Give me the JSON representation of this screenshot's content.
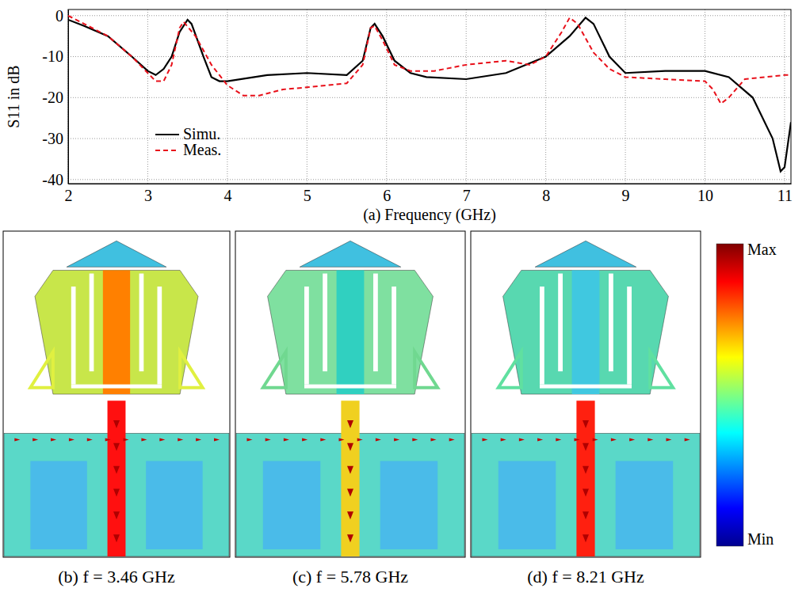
{
  "chart_data": {
    "type": "line",
    "xlabel": "(a) Frequency (GHz)",
    "ylabel": "S11 in dB",
    "xlim": [
      2,
      11.08
    ],
    "xticks": [
      2,
      3,
      4,
      5,
      6,
      7,
      8,
      9,
      10,
      11
    ],
    "ylim": [
      -41,
      1.5
    ],
    "yticks": [
      -40,
      -30,
      -20,
      -10,
      0
    ],
    "grid": true,
    "legend": "lower left",
    "series": [
      {
        "name": "Simu.",
        "color": "#000000",
        "line_style": "solid",
        "x": [
          2,
          2.2,
          2.5,
          2.8,
          3.0,
          3.1,
          3.2,
          3.3,
          3.4,
          3.5,
          3.55,
          3.7,
          3.8,
          3.9,
          4.0,
          4.5,
          5.0,
          5.5,
          5.7,
          5.8,
          5.85,
          5.95,
          6.1,
          6.3,
          6.5,
          7.0,
          7.5,
          8.0,
          8.3,
          8.5,
          8.6,
          8.8,
          9.0,
          9.5,
          10.0,
          10.3,
          10.6,
          10.85,
          10.95,
          11.0,
          11.08
        ],
        "values": [
          -1,
          -2.5,
          -5,
          -10,
          -13.5,
          -14.5,
          -13,
          -10,
          -4,
          -1,
          -2,
          -10,
          -15,
          -16,
          -16,
          -14.5,
          -14,
          -14.5,
          -11,
          -3,
          -2,
          -5,
          -11,
          -14,
          -15,
          -15.5,
          -14,
          -10,
          -5,
          -0.5,
          -2,
          -10,
          -14,
          -13.5,
          -13.5,
          -15,
          -20,
          -30,
          -38,
          -37,
          -26
        ]
      },
      {
        "name": "Meas.",
        "color": "#e8101a",
        "line_style": "dashed",
        "x": [
          2,
          2.2,
          2.5,
          2.8,
          3.0,
          3.1,
          3.2,
          3.3,
          3.4,
          3.45,
          3.6,
          3.8,
          4.0,
          4.2,
          4.4,
          4.7,
          5.0,
          5.5,
          5.7,
          5.8,
          5.85,
          5.95,
          6.1,
          6.3,
          6.6,
          7.0,
          7.5,
          7.8,
          8.0,
          8.2,
          8.3,
          8.4,
          8.6,
          8.8,
          9.0,
          9.5,
          10.0,
          10.1,
          10.2,
          10.3,
          10.5,
          11.0,
          11.08
        ],
        "values": [
          0,
          -2,
          -5,
          -10,
          -14,
          -16,
          -16,
          -12,
          -3,
          -1.5,
          -5,
          -12,
          -17,
          -19.5,
          -19.5,
          -18,
          -17.5,
          -16.5,
          -12,
          -3,
          -2.5,
          -6,
          -12,
          -13.5,
          -13.5,
          -12,
          -11,
          -12,
          -10,
          -4,
          -0.5,
          -2,
          -9,
          -13,
          -15,
          -15.5,
          -16,
          -18,
          -21.5,
          -20,
          -15.5,
          -14.5,
          -14.5
        ]
      }
    ]
  },
  "panels": [
    {
      "caption": "(b) f = 3.46 GHz"
    },
    {
      "caption": "(c) f = 5.78 GHz"
    },
    {
      "caption": "(d) f = 8.21 GHz"
    }
  ],
  "colorbar": {
    "max": "Max",
    "min": "Min"
  }
}
